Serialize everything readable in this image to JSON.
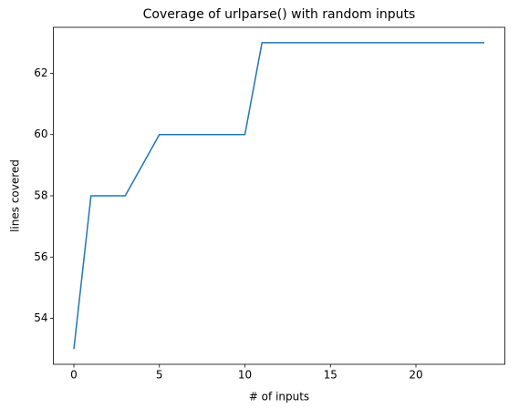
{
  "chart_data": {
    "type": "line",
    "title": "Coverage of urlparse() with random inputs",
    "x_label": "# of inputs",
    "y_label": "lines covered",
    "x": [
      0,
      1,
      2,
      3,
      4,
      5,
      6,
      7,
      8,
      9,
      10,
      11,
      12,
      13,
      14,
      15,
      16,
      17,
      18,
      19,
      20,
      21,
      22,
      23,
      24
    ],
    "values": [
      53,
      58,
      58,
      58,
      59,
      60,
      60,
      60,
      60,
      60,
      60,
      63,
      63,
      63,
      63,
      63,
      63,
      63,
      63,
      63,
      63,
      63,
      63,
      63,
      63
    ],
    "color": "#1f77b4",
    "xlim": [
      -1.2,
      25.2
    ],
    "xticks": [
      0,
      5,
      10,
      15,
      20
    ],
    "ylim": [
      52.5,
      63.5
    ],
    "yticks": [
      54,
      56,
      58,
      60,
      62
    ]
  }
}
